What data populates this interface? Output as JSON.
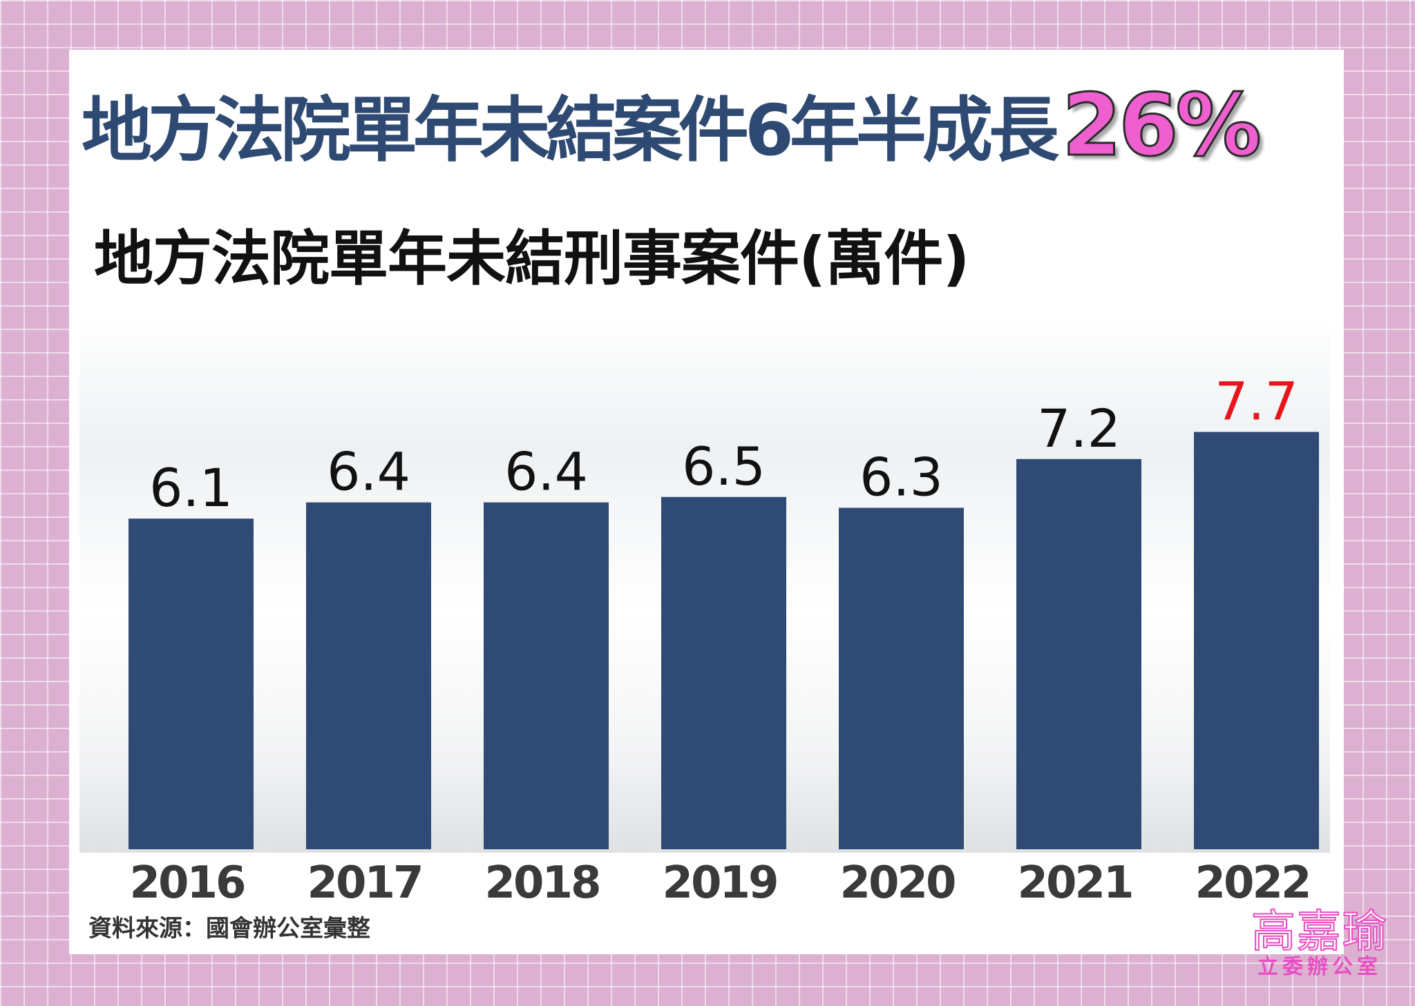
{
  "headline": {
    "text": "地方法院單年未結案件6年半成長",
    "highlight": "26%",
    "highlight_color": "#ef5fcf"
  },
  "chart_data": {
    "type": "bar",
    "title": "地方法院單年未結刑事案件(萬件)",
    "categories": [
      "2016",
      "2017",
      "2018",
      "2019",
      "2020",
      "2021",
      "2022"
    ],
    "values": [
      6.1,
      6.4,
      6.4,
      6.5,
      6.3,
      7.2,
      7.7
    ],
    "value_labels": [
      "6.1",
      "6.4",
      "6.4",
      "6.5",
      "6.3",
      "7.2",
      "7.7"
    ],
    "highlight_index": 6,
    "bar_color": "#2e4a75",
    "highlight_label_color": "#e8141b",
    "xlabel": "",
    "ylabel": "",
    "grid": false,
    "legend": "none"
  },
  "source": "資料來源：國會辦公室彙整",
  "logo": {
    "name": "高嘉瑜",
    "office": "立委辦公室"
  }
}
